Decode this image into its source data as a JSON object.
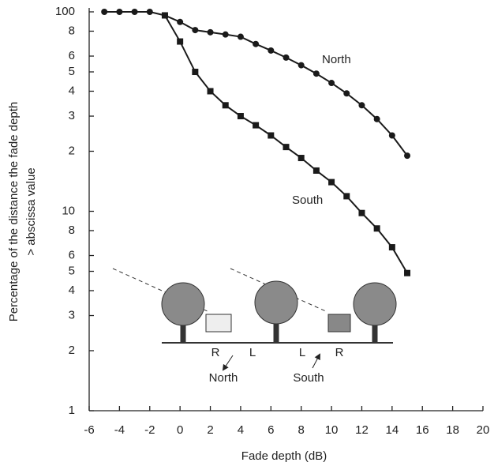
{
  "chart_data": {
    "type": "line",
    "xlabel": "Fade depth (dB)",
    "ylabel": [
      "Percentage of the distance the fade depth",
      "> abscissa value"
    ],
    "xlim": [
      -6,
      20
    ],
    "xticks": [
      -6,
      -4,
      -2,
      0,
      2,
      4,
      6,
      8,
      10,
      12,
      14,
      16,
      18,
      20
    ],
    "ylim": [
      1,
      100
    ],
    "log_y": true,
    "yticks": [
      {
        "value": 100,
        "label": "100"
      },
      {
        "value": 80,
        "label": "8"
      },
      {
        "value": 60,
        "label": "6"
      },
      {
        "value": 50,
        "label": "5"
      },
      {
        "value": 40,
        "label": "4"
      },
      {
        "value": 30,
        "label": "3"
      },
      {
        "value": 20,
        "label": "2"
      },
      10,
      {
        "value": 8,
        "label": "8"
      },
      6,
      5,
      4,
      3,
      2,
      1
    ],
    "series": [
      {
        "name": "North",
        "color": "#1a1a1a",
        "marker": "circle",
        "x": [
          -5,
          -4,
          -3,
          -2,
          -1,
          0,
          1,
          2,
          3,
          4,
          5,
          6,
          7,
          8,
          9,
          10,
          11,
          12,
          13,
          14,
          15
        ],
        "values": [
          100,
          100,
          100,
          100,
          96,
          89,
          81,
          79,
          77,
          75,
          69,
          64,
          59,
          54,
          49,
          44,
          39,
          34,
          29,
          24,
          19
        ]
      },
      {
        "name": "South",
        "color": "#1a1a1a",
        "marker": "square",
        "x": [
          -1,
          0,
          1,
          2,
          3,
          4,
          5,
          6,
          7,
          8,
          9,
          10,
          11,
          12,
          13,
          14,
          15
        ],
        "values": [
          96,
          71,
          50,
          40,
          34,
          30,
          27,
          24,
          21,
          18.5,
          16,
          14,
          11.9,
          9.8,
          8.2,
          6.6,
          4.9
        ]
      }
    ],
    "inset": {
      "labels": [
        "R",
        "L",
        "L",
        "R",
        "North",
        "South"
      ]
    }
  }
}
